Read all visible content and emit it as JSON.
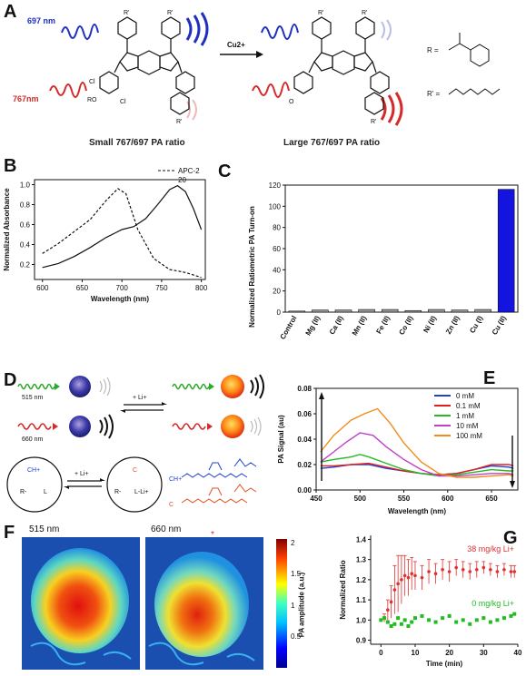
{
  "panels": {
    "A": {
      "label": "A",
      "wl_697": "697 nm",
      "wl_767": "767nm",
      "reagent": "Cu2+",
      "caption_left": "Small 767/697 PA ratio",
      "caption_right": "Large 767/697 PA ratio",
      "r_group": "R =",
      "r_prime": "R' =",
      "ro_label": "RO",
      "cl1": "Cl",
      "cl2": "Cl",
      "o_minus": "O",
      "colors": {
        "blue": "#1f2fbf",
        "red": "#d42a2a",
        "light_blue": "#b8bde8",
        "light_red": "#f0b8b8"
      }
    },
    "B": {
      "label": "B",
      "legend": [
        "APC-2",
        "20"
      ],
      "xlabel": "Wavelength (nm)",
      "ylabel": "Normalized Absorbance",
      "xticks": [
        "600",
        "650",
        "700",
        "750",
        "800"
      ],
      "yticks": [
        "0.2",
        "0.4",
        "0.6",
        "0.8",
        "1.0"
      ]
    },
    "C": {
      "label": "C",
      "ylabel": "Normalized Ratiometric PA Turn-on",
      "yticks": [
        "0",
        "20",
        "40",
        "60",
        "80",
        "100",
        "120"
      ]
    },
    "D": {
      "label": "D",
      "wl_515": "515 nm",
      "wl_660": "660 nm",
      "li_label": "+ Li+",
      "li_label2": "+ Li+",
      "ch_plus": "CH+",
      "l_label": "L",
      "r_minus": "R-",
      "c_label": "C",
      "r_minus2": "R-",
      "lli_label": "L-Li+",
      "ch_plus2": "CH+",
      "c_label2": "C"
    },
    "E": {
      "label": "E",
      "xlabel": "Wavelength (nm)",
      "ylabel": "PA Signal (au)",
      "xticks": [
        "450",
        "500",
        "550",
        "600",
        "650"
      ],
      "yticks": [
        "0.00",
        "0.02",
        "0.04",
        "0.06",
        "0.08"
      ]
    },
    "F": {
      "label": "F",
      "title_left": "515 nm",
      "title_right": "660 nm",
      "star": "*",
      "colorbar_label": "PA amplitude (a.u.)",
      "colorbar_ticks": [
        "2",
        "1.5",
        "1",
        "0.5"
      ]
    },
    "G": {
      "label": "G",
      "xlabel": "Time (min)",
      "ylabel": "Normalized Ratio",
      "xticks": [
        "0",
        "10",
        "20",
        "30",
        "40"
      ],
      "yticks": [
        "0.9",
        "1.0",
        "1.1",
        "1.2",
        "1.3",
        "1.4"
      ],
      "annot_red": "38 mg/kg Li+",
      "annot_green": "0 mg/kg Li+"
    }
  },
  "chart_data": [
    {
      "panel": "B",
      "type": "line",
      "xlabel": "Wavelength (nm)",
      "ylabel": "Normalized Absorbance",
      "xlim": [
        590,
        805
      ],
      "ylim": [
        0.05,
        1.05
      ],
      "legend_position": "top-right",
      "series": [
        {
          "name": "APC-2",
          "style": "dashed",
          "x": [
            600,
            620,
            640,
            660,
            680,
            695,
            705,
            720,
            740,
            760,
            780,
            800
          ],
          "y": [
            0.31,
            0.41,
            0.53,
            0.65,
            0.84,
            0.96,
            0.91,
            0.55,
            0.26,
            0.15,
            0.12,
            0.07
          ]
        },
        {
          "name": "20",
          "style": "solid",
          "x": [
            600,
            620,
            640,
            660,
            680,
            700,
            715,
            730,
            745,
            760,
            770,
            780,
            790,
            800
          ],
          "y": [
            0.17,
            0.21,
            0.28,
            0.37,
            0.47,
            0.55,
            0.58,
            0.66,
            0.8,
            0.95,
            0.99,
            0.93,
            0.76,
            0.55
          ]
        }
      ]
    },
    {
      "panel": "C",
      "type": "bar",
      "ylabel": "Normalized Ratiometric PA Turn-on",
      "ylim": [
        0,
        120
      ],
      "categories": [
        "Control",
        "Mg (II)",
        "Ca (II)",
        "Mn (II)",
        "Fe (II)",
        "Co (II)",
        "Ni (II)",
        "Zn (II)",
        "Cu (I)",
        "Cu (II)"
      ],
      "values": [
        1,
        2,
        2,
        2.5,
        2.5,
        1.5,
        2.5,
        2,
        2.5,
        116
      ],
      "colors": [
        "#9a9a9a",
        "#9a9a9a",
        "#9a9a9a",
        "#9a9a9a",
        "#9a9a9a",
        "#9a9a9a",
        "#9a9a9a",
        "#9a9a9a",
        "#9a9a9a",
        "#1414e0"
      ]
    },
    {
      "panel": "E",
      "type": "line",
      "xlabel": "Wavelength (nm)",
      "ylabel": "PA Signal (au)",
      "xlim": [
        450,
        680
      ],
      "ylim": [
        0,
        0.08
      ],
      "legend_position": "top-right",
      "series": [
        {
          "name": "0 mM",
          "color": "#1f3fd6",
          "x": [
            455,
            470,
            490,
            510,
            530,
            550,
            570,
            590,
            610,
            630,
            650,
            670,
            675
          ],
          "y": [
            0.017,
            0.018,
            0.02,
            0.02,
            0.017,
            0.015,
            0.013,
            0.012,
            0.013,
            0.016,
            0.019,
            0.018,
            0.017
          ]
        },
        {
          "name": "0.1 mM",
          "color": "#e02020",
          "x": [
            455,
            470,
            490,
            510,
            530,
            550,
            570,
            590,
            610,
            630,
            650,
            670,
            675
          ],
          "y": [
            0.019,
            0.019,
            0.02,
            0.021,
            0.018,
            0.015,
            0.013,
            0.012,
            0.013,
            0.016,
            0.02,
            0.02,
            0.019
          ]
        },
        {
          "name": "1 mM",
          "color": "#22bb22",
          "x": [
            455,
            470,
            490,
            500,
            510,
            530,
            550,
            570,
            590,
            610,
            630,
            650,
            670,
            675
          ],
          "y": [
            0.022,
            0.024,
            0.026,
            0.028,
            0.026,
            0.021,
            0.016,
            0.013,
            0.011,
            0.012,
            0.014,
            0.016,
            0.015,
            0.015
          ]
        },
        {
          "name": "10 mM",
          "color": "#c040c8",
          "x": [
            455,
            470,
            485,
            500,
            515,
            530,
            550,
            570,
            590,
            610,
            630,
            650,
            670,
            675
          ],
          "y": [
            0.022,
            0.03,
            0.038,
            0.045,
            0.043,
            0.034,
            0.024,
            0.016,
            0.011,
            0.011,
            0.012,
            0.013,
            0.013,
            0.012
          ]
        },
        {
          "name": "100 mM",
          "color": "#f08c1a",
          "x": [
            455,
            470,
            490,
            505,
            520,
            535,
            550,
            570,
            590,
            610,
            630,
            650,
            670,
            675
          ],
          "y": [
            0.03,
            0.043,
            0.055,
            0.06,
            0.064,
            0.052,
            0.037,
            0.022,
            0.013,
            0.01,
            0.01,
            0.011,
            0.012,
            0.011
          ]
        }
      ]
    },
    {
      "panel": "G",
      "type": "scatter",
      "xlabel": "Time (min)",
      "ylabel": "Normalized Ratio",
      "xlim": [
        -3,
        40
      ],
      "ylim": [
        0.88,
        1.42
      ],
      "series": [
        {
          "name": "38 mg/kg Li+",
          "color": "#e03030",
          "error_bars": true,
          "x": [
            0,
            1,
            2,
            3,
            4,
            5,
            6,
            7,
            8,
            9,
            10,
            12,
            14,
            16,
            18,
            20,
            22,
            24,
            26,
            28,
            30,
            32,
            34,
            36,
            38,
            39
          ],
          "y": [
            1.0,
            1.01,
            1.05,
            1.09,
            1.15,
            1.18,
            1.2,
            1.22,
            1.21,
            1.23,
            1.22,
            1.21,
            1.24,
            1.23,
            1.25,
            1.24,
            1.26,
            1.25,
            1.24,
            1.25,
            1.26,
            1.25,
            1.24,
            1.25,
            1.24,
            1.24
          ],
          "err": [
            0.0,
            0.02,
            0.05,
            0.08,
            0.12,
            0.14,
            0.12,
            0.1,
            0.09,
            0.08,
            0.07,
            0.06,
            0.06,
            0.05,
            0.05,
            0.05,
            0.04,
            0.04,
            0.04,
            0.04,
            0.03,
            0.03,
            0.03,
            0.03,
            0.03,
            0.03
          ]
        },
        {
          "name": "0 mg/kg Li+",
          "color": "#22bb22",
          "error_bars": false,
          "x": [
            0,
            1,
            2,
            3,
            4,
            5,
            6,
            7,
            8,
            9,
            10,
            12,
            14,
            16,
            18,
            20,
            22,
            24,
            26,
            28,
            30,
            32,
            34,
            36,
            38,
            39
          ],
          "y": [
            1.0,
            1.01,
            0.99,
            0.97,
            0.98,
            1.01,
            0.98,
            1.0,
            0.97,
            0.99,
            1.01,
            1.02,
            1.0,
            0.99,
            1.01,
            1.02,
            0.99,
            1.0,
            0.98,
            1.0,
            1.01,
            0.99,
            1.0,
            1.01,
            1.02,
            1.03
          ]
        }
      ]
    }
  ]
}
